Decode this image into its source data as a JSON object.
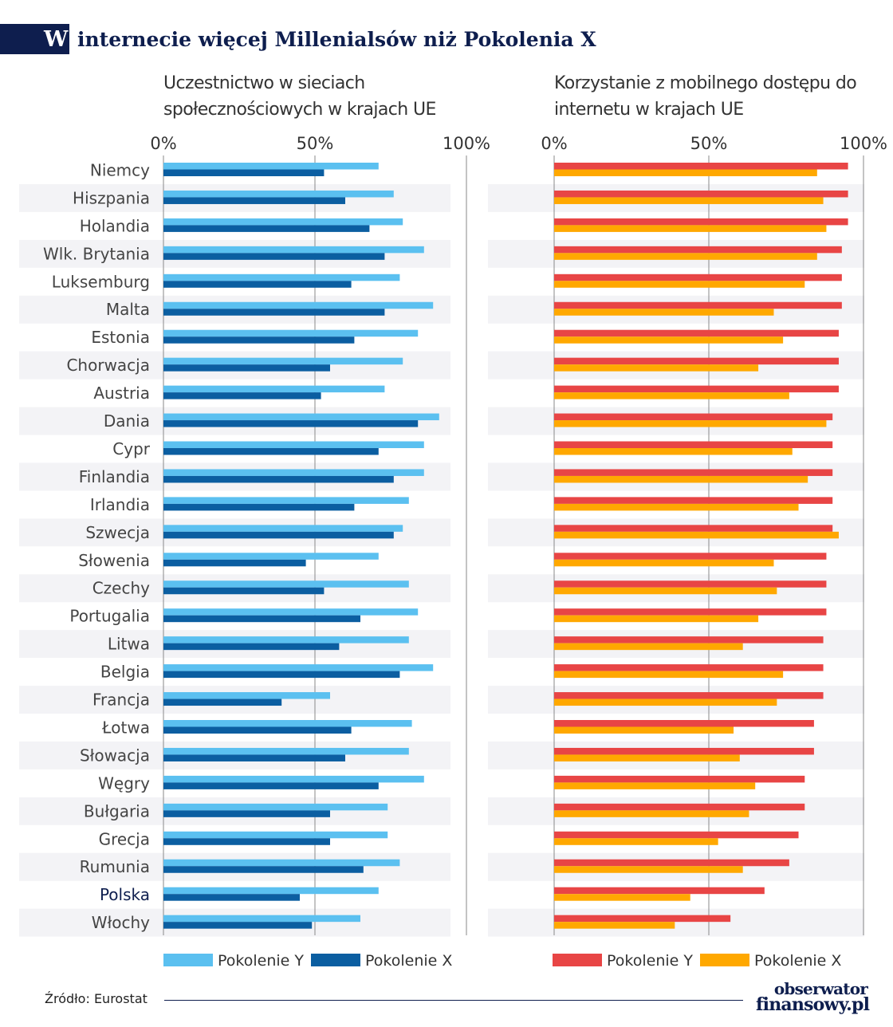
{
  "header": {
    "badge": "W",
    "title": "internecie więcej Millenialsów niż Pokolenia X"
  },
  "source": "Źródło: Eurostat",
  "logo": {
    "line1": "obserwator",
    "line2": "finansowy.pl"
  },
  "chart_data": [
    {
      "type": "bar",
      "orientation": "horizontal",
      "title": "Uczestnictwo w sieciach społecznościowych w krajach UE",
      "title_lines": [
        "Uczestnictwo w sieciach",
        "społecznościowych w krajach UE"
      ],
      "xlim": [
        0,
        100
      ],
      "ticks": [
        "0%",
        "50%",
        "100%"
      ],
      "grid": true,
      "legend_position": "bottom",
      "categories": [
        "Niemcy",
        "Hiszpania",
        "Holandia",
        "Wlk. Brytania",
        "Luksemburg",
        "Malta",
        "Estonia",
        "Chorwacja",
        "Austria",
        "Dania",
        "Cypr",
        "Finlandia",
        "Irlandia",
        "Szwecja",
        "Słowenia",
        "Czechy",
        "Portugalia",
        "Litwa",
        "Belgia",
        "Francja",
        "Łotwa",
        "Słowacja",
        "Węgry",
        "Bułgaria",
        "Grecja",
        "Rumunia",
        "Polska",
        "Włochy"
      ],
      "highlight_category": "Polska",
      "series": [
        {
          "name": "Pokolenie Y",
          "color": "#5bc0f0",
          "values": [
            71,
            76,
            79,
            86,
            78,
            89,
            84,
            79,
            73,
            91,
            86,
            86,
            81,
            79,
            71,
            81,
            84,
            81,
            89,
            55,
            82,
            81,
            86,
            74,
            74,
            78,
            71,
            65
          ]
        },
        {
          "name": "Pokolenie X",
          "color": "#0b5ea1",
          "values": [
            53,
            60,
            68,
            73,
            62,
            73,
            63,
            55,
            52,
            84,
            71,
            76,
            63,
            76,
            47,
            53,
            65,
            58,
            78,
            39,
            62,
            60,
            71,
            55,
            55,
            66,
            45,
            49
          ]
        }
      ]
    },
    {
      "type": "bar",
      "orientation": "horizontal",
      "title": "Korzystanie z mobilnego dostępu do internetu w krajach UE",
      "title_lines": [
        "Korzystanie z mobilnego dostępu do",
        "internetu w krajach UE"
      ],
      "xlim": [
        0,
        100
      ],
      "ticks": [
        "0%",
        "50%",
        "100%"
      ],
      "grid": true,
      "legend_position": "bottom",
      "series": [
        {
          "name": "Pokolenie Y",
          "color": "#e84545",
          "values": [
            95,
            95,
            95,
            93,
            93,
            93,
            92,
            92,
            92,
            90,
            90,
            90,
            90,
            90,
            88,
            88,
            88,
            87,
            87,
            87,
            84,
            84,
            81,
            81,
            79,
            76,
            68,
            57
          ]
        },
        {
          "name": "Pokolenie X",
          "color": "#ffa800",
          "values": [
            85,
            87,
            88,
            85,
            81,
            71,
            74,
            66,
            76,
            88,
            77,
            82,
            79,
            92,
            71,
            72,
            66,
            61,
            74,
            72,
            58,
            60,
            65,
            63,
            53,
            61,
            44,
            39
          ]
        }
      ]
    }
  ]
}
